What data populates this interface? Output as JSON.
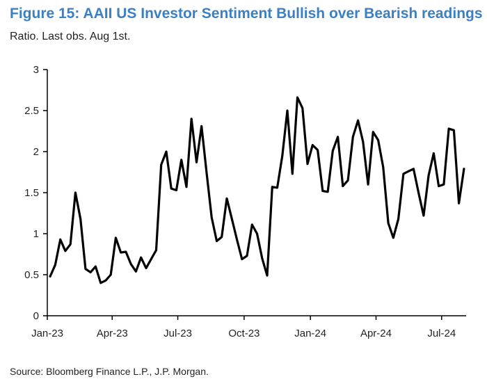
{
  "header": {
    "title": "Figure 15: AAII US Investor Sentiment Bullish over Bearish readings",
    "subtitle": "Ratio. Last obs. Aug 1st."
  },
  "footer": {
    "source": "Source: Bloomberg Finance L.P., J.P. Morgan."
  },
  "colors": {
    "title": "#3b7fc4",
    "line": "#000000",
    "axis": "#000000"
  },
  "chart_data": {
    "type": "line",
    "title": "Figure 15: AAII US Investor Sentiment Bullish over Bearish readings",
    "subtitle": "Ratio. Last obs. Aug 1st.",
    "xlabel": "",
    "ylabel": "",
    "ylim": [
      0,
      3
    ],
    "yticks": [
      "0",
      "0.5",
      "1",
      "1.5",
      "2",
      "2.5",
      "3"
    ],
    "xticks": [
      "Jan-23",
      "Apr-23",
      "Jul-23",
      "Oct-23",
      "Jan-24",
      "Apr-24",
      "Jul-24"
    ],
    "xtick_dates": [
      "2023-01-01",
      "2023-04-01",
      "2023-07-01",
      "2023-10-01",
      "2024-01-01",
      "2024-04-01",
      "2024-07-01"
    ],
    "grid": false,
    "legend": "none",
    "series": [
      {
        "x": [
          "2023-01-05",
          "2023-01-12",
          "2023-01-19",
          "2023-01-26",
          "2023-02-02",
          "2023-02-09",
          "2023-02-16",
          "2023-02-23",
          "2023-03-02",
          "2023-03-09",
          "2023-03-16",
          "2023-03-23",
          "2023-03-30",
          "2023-04-06",
          "2023-04-13",
          "2023-04-20",
          "2023-04-27",
          "2023-05-04",
          "2023-05-11",
          "2023-05-18",
          "2023-05-25",
          "2023-06-01",
          "2023-06-08",
          "2023-06-15",
          "2023-06-22",
          "2023-06-29",
          "2023-07-06",
          "2023-07-13",
          "2023-07-20",
          "2023-07-27",
          "2023-08-03",
          "2023-08-10",
          "2023-08-17",
          "2023-08-24",
          "2023-08-31",
          "2023-09-07",
          "2023-09-14",
          "2023-09-21",
          "2023-09-28",
          "2023-10-05",
          "2023-10-12",
          "2023-10-19",
          "2023-10-26",
          "2023-11-02",
          "2023-11-09",
          "2023-11-16",
          "2023-11-23",
          "2023-11-30",
          "2023-12-07",
          "2023-12-14",
          "2023-12-21",
          "2023-12-28",
          "2024-01-04",
          "2024-01-11",
          "2024-01-18",
          "2024-01-25",
          "2024-02-01",
          "2024-02-08",
          "2024-02-15",
          "2024-02-22",
          "2024-02-29",
          "2024-03-07",
          "2024-03-14",
          "2024-03-21",
          "2024-03-28",
          "2024-04-04",
          "2024-04-11",
          "2024-04-18",
          "2024-04-25",
          "2024-05-02",
          "2024-05-09",
          "2024-05-16",
          "2024-05-23",
          "2024-05-30",
          "2024-06-06",
          "2024-06-13",
          "2024-06-20",
          "2024-06-27",
          "2024-07-04",
          "2024-07-11",
          "2024-07-18",
          "2024-07-25",
          "2024-08-01"
        ],
        "values": [
          0.48,
          0.62,
          0.93,
          0.79,
          0.87,
          1.5,
          1.18,
          0.57,
          0.53,
          0.6,
          0.4,
          0.43,
          0.5,
          0.95,
          0.77,
          0.78,
          0.63,
          0.54,
          0.71,
          0.58,
          0.69,
          0.8,
          1.84,
          2.0,
          1.55,
          1.53,
          1.9,
          1.57,
          2.4,
          1.87,
          2.31,
          1.74,
          1.2,
          0.91,
          0.96,
          1.43,
          1.18,
          0.93,
          0.69,
          0.73,
          1.11,
          1.0,
          0.7,
          0.49,
          1.57,
          1.56,
          1.95,
          2.5,
          1.73,
          2.66,
          2.53,
          1.85,
          2.08,
          2.02,
          1.52,
          1.51,
          2.01,
          2.18,
          1.58,
          1.65,
          2.18,
          2.38,
          2.12,
          1.6,
          2.24,
          2.14,
          1.81,
          1.13,
          0.95,
          1.18,
          1.73,
          1.76,
          1.79,
          1.5,
          1.22,
          1.71,
          1.98,
          1.58,
          1.6,
          2.28,
          2.26,
          1.37,
          1.79
        ]
      }
    ]
  }
}
